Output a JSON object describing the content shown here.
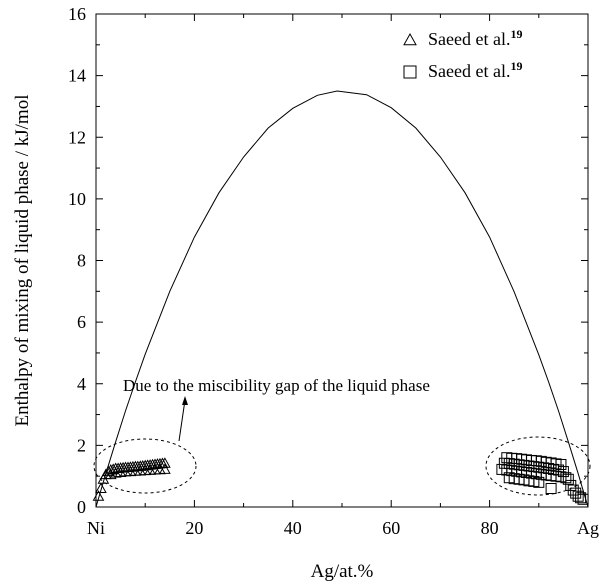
{
  "chart_data": {
    "type": "scatter",
    "title": "",
    "xlabel": "Ag/at.%",
    "ylabel": "Enthalpy of mixing of liquid phase / kJ/mol",
    "xlim": [
      0,
      100
    ],
    "ylim": [
      0,
      16
    ],
    "xticks": [
      {
        "value": 0,
        "label": "Ni"
      },
      {
        "value": 20,
        "label": "20"
      },
      {
        "value": 40,
        "label": "40"
      },
      {
        "value": 60,
        "label": "60"
      },
      {
        "value": 80,
        "label": "80"
      },
      {
        "value": 100,
        "label": "Ag"
      }
    ],
    "yticks": [
      0,
      2,
      4,
      6,
      8,
      10,
      12,
      14,
      16
    ],
    "grid": false,
    "legend_position": "top-right",
    "legend": [
      {
        "marker": "triangle",
        "name_text": "Saeed et al.",
        "superscript": "19"
      },
      {
        "marker": "square",
        "name_text": "Saeed et al.",
        "superscript": "19"
      }
    ],
    "annotation": "Due to the miscibility gap of the liquid phase",
    "series": [
      {
        "kind": "line",
        "color": "#000000",
        "x": [
          0,
          2,
          4,
          6,
          8,
          10,
          15,
          20,
          25,
          30,
          35,
          40,
          45,
          49,
          55,
          60,
          65,
          70,
          75,
          80,
          85,
          90,
          92,
          94,
          96,
          98,
          100
        ],
        "y": [
          0,
          1.08,
          2.12,
          3.12,
          4.06,
          4.96,
          7.0,
          8.76,
          10.2,
          11.36,
          12.3,
          12.94,
          13.36,
          13.5,
          13.38,
          12.96,
          12.3,
          11.36,
          10.2,
          8.76,
          6.98,
          4.94,
          4.06,
          3.12,
          2.12,
          1.08,
          0
        ]
      },
      {
        "kind": "scatter",
        "marker": "triangle",
        "x": [
          0.5,
          1.0,
          1.5,
          2.0,
          2.5,
          3.0,
          3.5,
          4.0,
          4.5,
          5.0,
          5.5,
          6.0,
          6.5,
          7.0,
          7.5,
          8.0,
          8.5,
          9.0,
          9.5,
          10.0,
          10.5,
          11.0,
          11.5,
          12.0,
          12.5,
          13.0,
          13.5,
          14.0,
          3.0,
          4.0,
          5.0,
          6.0,
          7.0,
          8.0,
          9.0,
          10.0,
          11.0,
          12.0,
          13.0,
          14.0
        ],
        "y": [
          0.35,
          0.6,
          0.9,
          1.05,
          1.15,
          1.2,
          1.22,
          1.25,
          1.25,
          1.26,
          1.27,
          1.28,
          1.28,
          1.29,
          1.3,
          1.31,
          1.31,
          1.32,
          1.33,
          1.34,
          1.35,
          1.36,
          1.37,
          1.38,
          1.39,
          1.4,
          1.41,
          1.42,
          1.05,
          1.1,
          1.12,
          1.14,
          1.15,
          1.16,
          1.17,
          1.18,
          1.19,
          1.2,
          1.21,
          1.22
        ]
      },
      {
        "kind": "scatter",
        "marker": "square",
        "x": [
          83.5,
          84.5,
          85.5,
          86.5,
          87.5,
          88.5,
          89.5,
          90.5,
          91.5,
          92.5,
          93.5,
          94.5,
          83.0,
          84.0,
          85.0,
          86.0,
          87.0,
          88.0,
          89.0,
          90.0,
          91.0,
          92.0,
          93.0,
          94.0,
          95.0,
          82.5,
          83.5,
          84.5,
          85.5,
          86.5,
          87.5,
          88.5,
          89.5,
          90.5,
          91.5,
          92.5,
          93.5,
          94.5,
          95.5,
          84.0,
          85.0,
          86.0,
          87.0,
          88.0,
          89.0,
          90.0,
          96.0,
          96.5,
          97.0,
          97.5,
          98.0,
          98.5,
          99.0,
          92.5
        ],
        "y": [
          1.6,
          1.58,
          1.57,
          1.55,
          1.53,
          1.51,
          1.5,
          1.48,
          1.45,
          1.43,
          1.4,
          1.38,
          1.42,
          1.41,
          1.39,
          1.37,
          1.35,
          1.33,
          1.31,
          1.29,
          1.27,
          1.25,
          1.22,
          1.2,
          1.15,
          1.22,
          1.2,
          1.18,
          1.16,
          1.14,
          1.12,
          1.1,
          1.08,
          1.06,
          1.04,
          1.02,
          1.0,
          0.98,
          0.95,
          0.95,
          0.92,
          0.9,
          0.88,
          0.85,
          0.83,
          0.8,
          0.9,
          0.7,
          0.55,
          0.45,
          0.35,
          0.3,
          0.25,
          0.6
        ]
      }
    ]
  }
}
